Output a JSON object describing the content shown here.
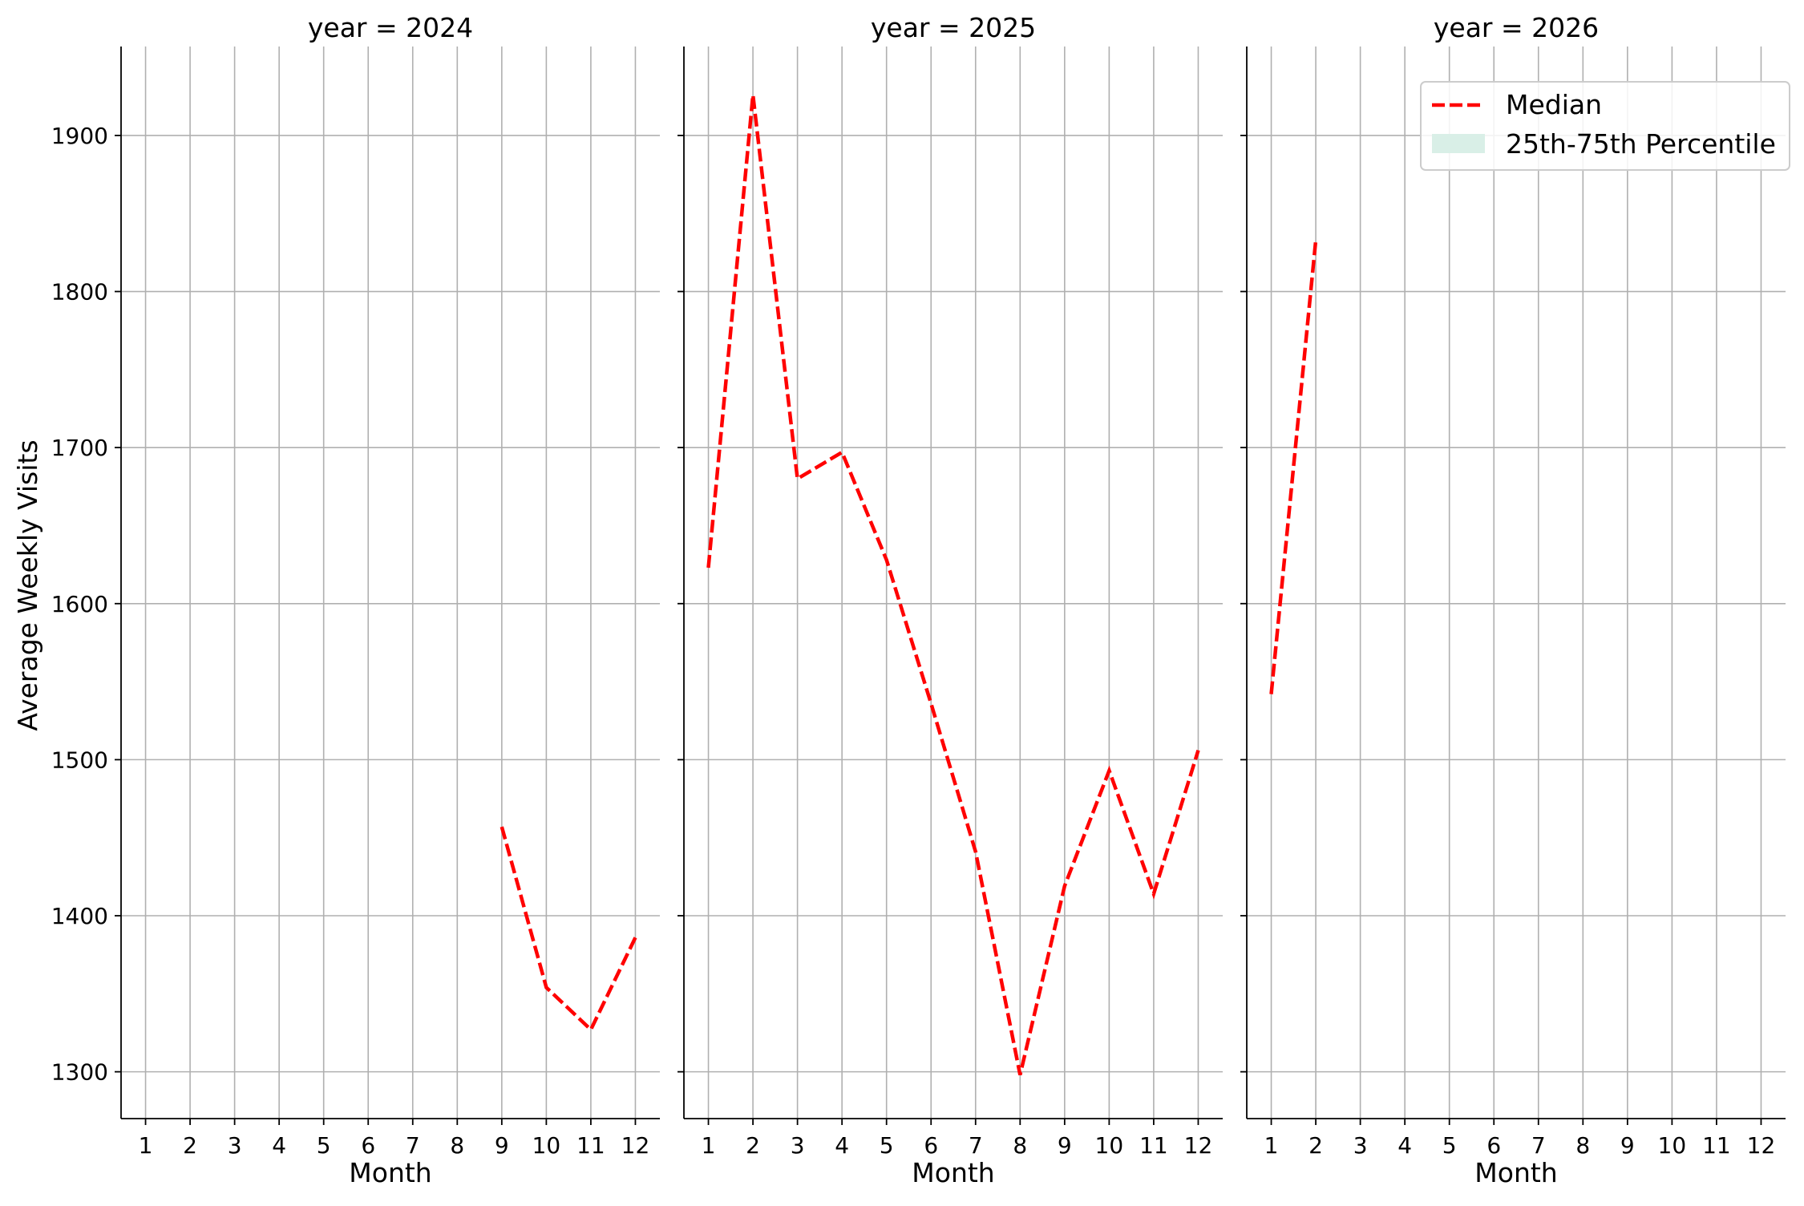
{
  "chart_data": {
    "type": "line",
    "ylabel": "Average Weekly Visits",
    "xlabel": "Month",
    "ylim": [
      1270,
      1957
    ],
    "yticks": [
      1300,
      1400,
      1500,
      1600,
      1700,
      1800,
      1900
    ],
    "xticks": [
      1,
      2,
      3,
      4,
      5,
      6,
      7,
      8,
      9,
      10,
      11,
      12
    ],
    "xlim": [
      0.45,
      12.55
    ],
    "grid": true,
    "legend": {
      "placement": "top-right",
      "entries": [
        {
          "label": "Median",
          "color": "#ff0000",
          "style": "dashed"
        },
        {
          "label": "25th-75th Percentile",
          "color": "#d9efe7",
          "style": "band"
        }
      ]
    },
    "panels": [
      {
        "title": "year = 2024",
        "series": [
          {
            "name": "Median",
            "x": [
              9,
              10,
              11,
              12
            ],
            "y": [
              1457,
              1354,
              1327,
              1386
            ]
          }
        ]
      },
      {
        "title": "year = 2025",
        "series": [
          {
            "name": "Median",
            "x": [
              1,
              2,
              3,
              4,
              5,
              6,
              7,
              8,
              9,
              10,
              11,
              12
            ],
            "y": [
              1623,
              1926,
              1680,
              1697,
              1628,
              1536,
              1441,
              1298,
              1419,
              1493,
              1414,
              1506
            ]
          }
        ]
      },
      {
        "title": "year = 2026",
        "series": [
          {
            "name": "Median",
            "x": [
              1,
              2
            ],
            "y": [
              1542,
              1833
            ]
          }
        ]
      }
    ],
    "colors": {
      "line": "#ff0000",
      "grid": "#b0b0b0",
      "axis": "#000000",
      "band": "#d9efe7"
    }
  }
}
